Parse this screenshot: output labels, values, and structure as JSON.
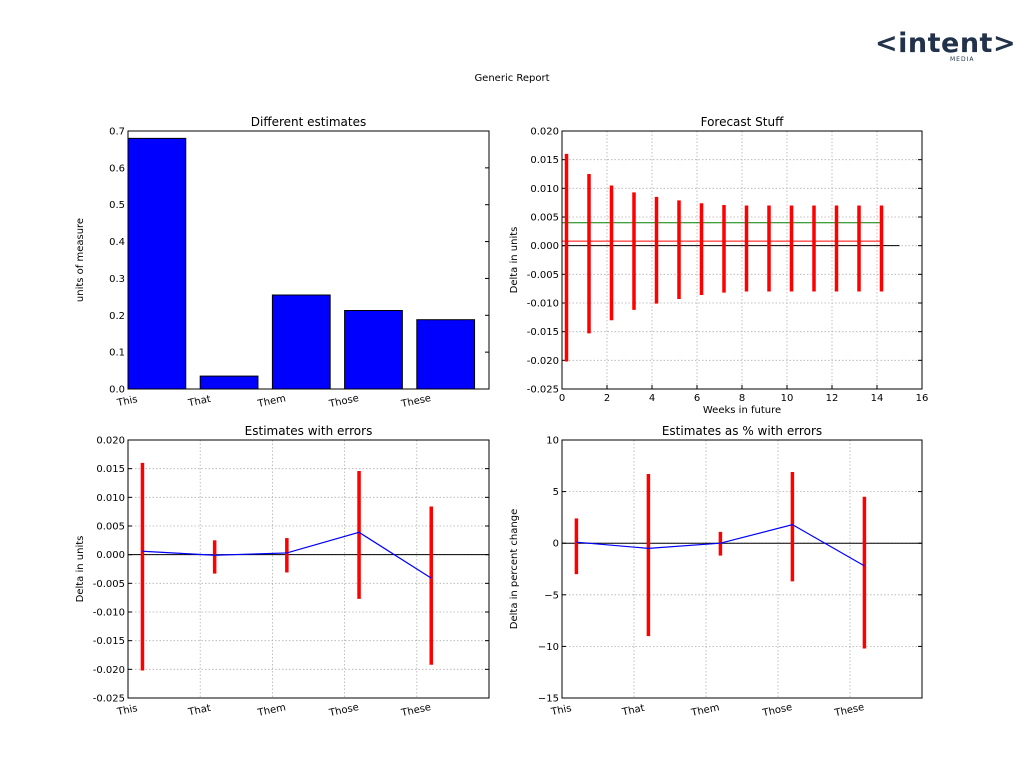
{
  "logo": {
    "text": "<intent>",
    "sub": "MEDIA"
  },
  "report": {
    "title": "Generic Report"
  },
  "colors": {
    "bar": "#0000ff",
    "error": "#ff0000",
    "line": "#0000ff",
    "zero": "#000000",
    "green": "#008000"
  },
  "chart_data": [
    {
      "type": "bar",
      "title": "Different estimates",
      "xlabel": "",
      "ylabel": "units of measure",
      "categories": [
        "This",
        "That",
        "Them",
        "Those",
        "These"
      ],
      "values": [
        0.68,
        0.035,
        0.255,
        0.213,
        0.188
      ],
      "ylim": [
        0,
        0.7
      ],
      "yticks": [
        "0.0",
        "0.1",
        "0.2",
        "0.3",
        "0.4",
        "0.5",
        "0.6",
        "0.7"
      ],
      "grid": false
    },
    {
      "type": "line",
      "title": "Forecast Stuff",
      "xlabel": "Weeks in future",
      "ylabel": "Delta in units",
      "xlim": [
        0,
        16
      ],
      "ylim": [
        -0.025,
        0.02
      ],
      "xticks": [
        "0",
        "2",
        "4",
        "6",
        "8",
        "10",
        "12",
        "14",
        "16"
      ],
      "yticks": [
        "-0.025",
        "-0.020",
        "-0.015",
        "-0.010",
        "-0.005",
        "0.000",
        "0.005",
        "0.010",
        "0.015",
        "0.020"
      ],
      "grid": true,
      "error_bars": [
        {
          "x": 0.2,
          "lo": -0.0202,
          "hi": 0.016
        },
        {
          "x": 1.2,
          "lo": -0.0153,
          "hi": 0.0125
        },
        {
          "x": 2.2,
          "lo": -0.013,
          "hi": 0.0105
        },
        {
          "x": 3.2,
          "lo": -0.0112,
          "hi": 0.0093
        },
        {
          "x": 4.2,
          "lo": -0.0101,
          "hi": 0.0085
        },
        {
          "x": 5.2,
          "lo": -0.0093,
          "hi": 0.0079
        },
        {
          "x": 6.2,
          "lo": -0.0086,
          "hi": 0.0074
        },
        {
          "x": 7.2,
          "lo": -0.0082,
          "hi": 0.0071
        },
        {
          "x": 8.2,
          "lo": -0.008,
          "hi": 0.007
        },
        {
          "x": 9.2,
          "lo": -0.008,
          "hi": 0.007
        },
        {
          "x": 10.2,
          "lo": -0.008,
          "hi": 0.007
        },
        {
          "x": 11.2,
          "lo": -0.008,
          "hi": 0.007
        },
        {
          "x": 12.2,
          "lo": -0.008,
          "hi": 0.007
        },
        {
          "x": 13.2,
          "lo": -0.008,
          "hi": 0.007
        },
        {
          "x": 14.2,
          "lo": -0.008,
          "hi": 0.007
        }
      ],
      "hlines": [
        {
          "y": 0.0,
          "x0": 0,
          "x1": 15,
          "color": "#000000"
        },
        {
          "y": 0.004,
          "x0": 0,
          "x1": 14.2,
          "color": "#008000"
        },
        {
          "y": 0.0008,
          "x0": 0,
          "x1": 14.2,
          "color": "#ff0000"
        }
      ]
    },
    {
      "type": "line",
      "title": "Estimates with errors",
      "xlabel": "",
      "ylabel": "Delta in units",
      "categories": [
        "This",
        "That",
        "Them",
        "Those",
        "These"
      ],
      "xlim": [
        0,
        5
      ],
      "ylim": [
        -0.025,
        0.02
      ],
      "yticks": [
        "-0.025",
        "-0.020",
        "-0.015",
        "-0.010",
        "-0.005",
        "0.000",
        "0.005",
        "0.010",
        "0.015",
        "0.020"
      ],
      "grid": true,
      "series": [
        {
          "x": [
            0.2,
            1.2,
            2.2,
            3.2,
            4.2
          ],
          "values": [
            0.0006,
            -0.0001,
            0.0003,
            0.0039,
            -0.0041
          ],
          "lo": [
            -0.0202,
            -0.0033,
            -0.0031,
            -0.0077,
            -0.0192
          ],
          "hi": [
            0.016,
            0.0025,
            0.0029,
            0.0146,
            0.0084
          ]
        }
      ],
      "zero_line": 0
    },
    {
      "type": "line",
      "title": "Estimates as % with errors",
      "xlabel": "",
      "ylabel": "Delta in percent change",
      "categories": [
        "This",
        "That",
        "Them",
        "Those",
        "These"
      ],
      "xlim": [
        0,
        5
      ],
      "ylim": [
        -15,
        10
      ],
      "yticks": [
        "−15",
        "−10",
        "−5",
        "0",
        "5",
        "10"
      ],
      "grid": true,
      "series": [
        {
          "x": [
            0.2,
            1.2,
            2.2,
            3.2,
            4.2
          ],
          "values": [
            0.1,
            -0.5,
            0.0,
            1.8,
            -2.2
          ],
          "lo": [
            -3.0,
            -9.0,
            -1.2,
            -3.7,
            -10.2
          ],
          "hi": [
            2.4,
            6.7,
            1.1,
            6.9,
            4.5
          ]
        }
      ],
      "zero_line": 0
    }
  ]
}
